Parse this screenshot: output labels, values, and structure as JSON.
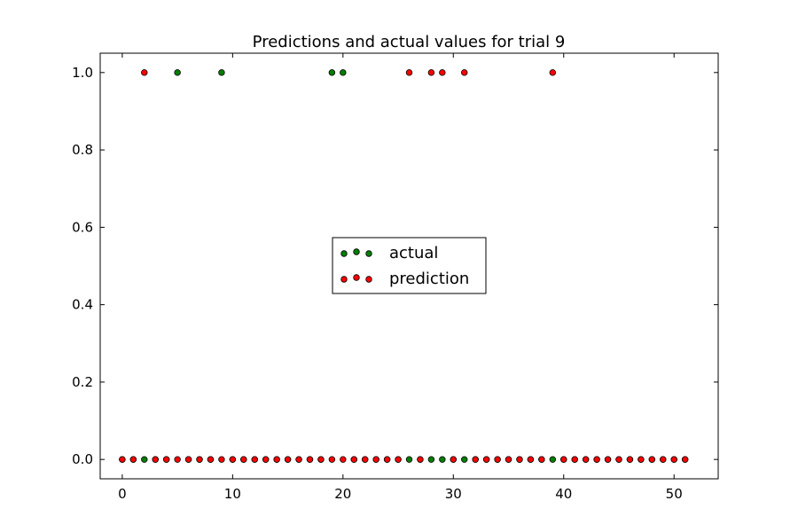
{
  "chart_data": {
    "type": "scatter",
    "title": "Predictions and actual values for trial 9",
    "xlabel": "",
    "ylabel": "",
    "xlim": [
      -2,
      54
    ],
    "ylim": [
      -0.05,
      1.05
    ],
    "xticks": [
      0,
      10,
      20,
      30,
      40,
      50
    ],
    "xtick_labels": [
      "0",
      "10",
      "20",
      "30",
      "40",
      "50"
    ],
    "yticks": [
      0.0,
      0.2,
      0.4,
      0.6,
      0.8,
      1.0
    ],
    "ytick_labels": [
      "0.0",
      "0.2",
      "0.4",
      "0.6",
      "0.8",
      "1.0"
    ],
    "grid": false,
    "legend_position": "center",
    "series": [
      {
        "name": "actual",
        "color": "#007f00",
        "x": [
          0,
          1,
          2,
          3,
          4,
          5,
          6,
          7,
          8,
          9,
          10,
          11,
          12,
          13,
          14,
          15,
          16,
          17,
          18,
          19,
          20,
          21,
          22,
          23,
          24,
          25,
          26,
          27,
          28,
          29,
          30,
          31,
          32,
          33,
          34,
          35,
          36,
          37,
          38,
          39,
          40,
          41,
          42,
          43,
          44,
          45,
          46,
          47,
          48,
          49,
          50,
          51
        ],
        "y": [
          0,
          0,
          0,
          0,
          0,
          1,
          0,
          0,
          0,
          1,
          0,
          0,
          0,
          0,
          0,
          0,
          0,
          0,
          0,
          1,
          1,
          0,
          0,
          0,
          0,
          0,
          0,
          0,
          0,
          0,
          0,
          0,
          0,
          0,
          0,
          0,
          0,
          0,
          0,
          0,
          0,
          0,
          0,
          0,
          0,
          0,
          0,
          0,
          0,
          0,
          0,
          0
        ]
      },
      {
        "name": "prediction",
        "color": "#ff0000",
        "x": [
          0,
          1,
          2,
          3,
          4,
          5,
          6,
          7,
          8,
          9,
          10,
          11,
          12,
          13,
          14,
          15,
          16,
          17,
          18,
          19,
          20,
          21,
          22,
          23,
          24,
          25,
          26,
          27,
          29,
          30,
          31,
          32,
          33,
          34,
          35,
          36,
          37,
          38,
          39,
          40,
          41,
          42,
          43,
          44,
          45,
          46,
          47,
          48,
          49,
          50,
          51,
          28
        ],
        "y": [
          0,
          0,
          1,
          0,
          0,
          0,
          0,
          0,
          0,
          0,
          0,
          0,
          0,
          0,
          0,
          0,
          0,
          0,
          0,
          0,
          0,
          0,
          0,
          0,
          0,
          0,
          1,
          0,
          1,
          0,
          1,
          0,
          0,
          0,
          0,
          0,
          0,
          0,
          1,
          0,
          0,
          0,
          0,
          0,
          0,
          0,
          0,
          0,
          0,
          0,
          0,
          1
        ]
      }
    ]
  }
}
